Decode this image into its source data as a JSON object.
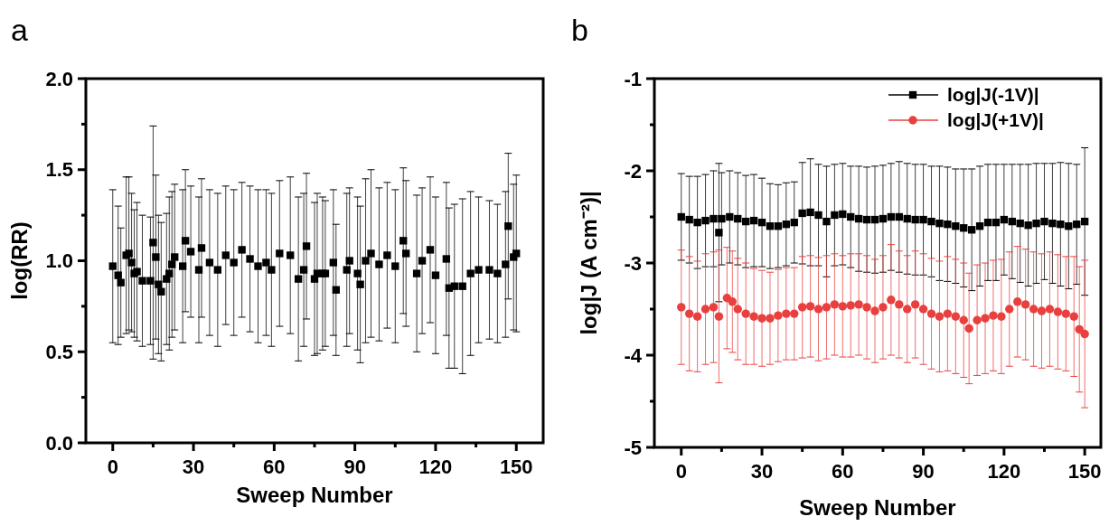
{
  "chart_data": [
    {
      "type": "scatter",
      "title": "a",
      "xlabel": "Sweep Number",
      "ylabel": "log(RR)",
      "xlim": [
        -10,
        160
      ],
      "ylim": [
        0,
        2
      ],
      "xticks": [
        0,
        {
          "value": 15,
          "label": null
        },
        30,
        {
          "value": 45,
          "label": null
        },
        60,
        {
          "value": 75,
          "label": null
        },
        90,
        {
          "value": 105,
          "label": null
        },
        120,
        {
          "value": 135,
          "label": null
        },
        150
      ],
      "yticks": [
        {
          "value": 0,
          "label": "0.0"
        },
        {
          "value": 0.25,
          "label": null
        },
        0.5,
        {
          "value": 0.75,
          "label": null
        },
        {
          "value": 1,
          "label": "1.0"
        },
        {
          "value": 1.25,
          "label": null
        },
        1.5,
        {
          "value": 1.75,
          "label": null
        },
        {
          "value": 2,
          "label": "2.0"
        }
      ],
      "grid": false,
      "legend": false,
      "series": [
        {
          "color": "#000000",
          "marker": "square",
          "x": [
            0,
            2,
            3,
            5,
            6,
            7,
            8,
            9,
            11,
            14,
            15,
            16,
            17,
            18,
            20,
            21,
            22,
            23,
            26,
            27,
            29,
            32,
            33,
            36,
            39,
            42,
            45,
            48,
            51,
            54,
            57,
            59,
            62,
            66,
            69,
            71,
            72,
            75,
            76,
            78,
            79,
            82,
            83,
            87,
            88,
            91,
            92,
            94,
            96,
            99,
            102,
            105,
            108,
            109,
            113,
            115,
            118,
            120,
            124,
            125,
            127,
            130,
            133,
            136,
            140,
            143,
            146,
            147,
            149,
            150
          ],
          "values": [
            0.97,
            0.92,
            0.88,
            1.03,
            1.04,
            0.99,
            0.93,
            0.94,
            0.89,
            0.89,
            1.1,
            1.02,
            0.87,
            0.83,
            0.9,
            0.93,
            0.98,
            1.02,
            0.97,
            1.11,
            1.05,
            0.95,
            1.07,
            0.99,
            0.95,
            1.03,
            0.99,
            1.06,
            1.01,
            0.97,
            0.99,
            0.95,
            1.04,
            1.03,
            0.9,
            0.95,
            1.08,
            0.9,
            0.93,
            0.93,
            0.93,
            0.99,
            0.84,
            0.95,
            1.0,
            0.93,
            0.87,
            1.0,
            1.04,
            0.98,
            1.03,
            0.97,
            1.11,
            1.04,
            0.93,
            1.0,
            1.06,
            0.92,
            1.01,
            0.85,
            0.86,
            0.86,
            0.93,
            0.95,
            0.95,
            0.93,
            0.98,
            1.19,
            1.02,
            1.04
          ],
          "errors": [
            0.42,
            0.38,
            0.3,
            0.43,
            0.42,
            0.38,
            0.35,
            0.38,
            0.36,
            0.35,
            0.64,
            0.45,
            0.38,
            0.38,
            0.36,
            0.42,
            0.4,
            0.4,
            0.42,
            0.39,
            0.36,
            0.4,
            0.38,
            0.4,
            0.42,
            0.38,
            0.4,
            0.37,
            0.4,
            0.42,
            0.4,
            0.42,
            0.4,
            0.43,
            0.45,
            0.42,
            0.4,
            0.42,
            0.44,
            0.42,
            0.4,
            0.4,
            0.36,
            0.42,
            0.4,
            0.42,
            0.43,
            0.45,
            0.46,
            0.42,
            0.4,
            0.42,
            0.4,
            0.4,
            0.43,
            0.4,
            0.4,
            0.43,
            0.42,
            0.44,
            0.45,
            0.48,
            0.45,
            0.4,
            0.38,
            0.38,
            0.4,
            0.4,
            0.4,
            0.43
          ]
        }
      ]
    },
    {
      "type": "scatter",
      "title": "b",
      "xlabel": "Sweep Number",
      "ylabel": "log|J (A cm⁻²)|",
      "xlim": [
        -10,
        156
      ],
      "ylim": [
        -5,
        -1
      ],
      "xticks": [
        0,
        {
          "value": 15,
          "label": null
        },
        30,
        {
          "value": 45,
          "label": null
        },
        60,
        {
          "value": 75,
          "label": null
        },
        90,
        {
          "value": 105,
          "label": null
        },
        120,
        {
          "value": 135,
          "label": null
        },
        150
      ],
      "yticks": [
        -5,
        {
          "value": -4.5,
          "label": null
        },
        -4,
        {
          "value": -3.5,
          "label": null
        },
        -3,
        {
          "value": -2.5,
          "label": null
        },
        -2,
        {
          "value": -1.5,
          "label": null
        },
        -1
      ],
      "grid": false,
      "legend": "top right",
      "series": [
        {
          "name": "log|J(-1V)|",
          "color": "#000000",
          "marker": "square",
          "x": [
            0,
            3,
            6,
            9,
            12,
            14,
            15,
            18,
            21,
            24,
            27,
            30,
            33,
            36,
            39,
            42,
            45,
            48,
            51,
            54,
            57,
            60,
            63,
            66,
            69,
            72,
            75,
            78,
            81,
            84,
            87,
            90,
            93,
            96,
            99,
            102,
            105,
            108,
            111,
            114,
            117,
            120,
            123,
            126,
            129,
            132,
            135,
            138,
            141,
            144,
            147,
            150
          ],
          "values": [
            -2.5,
            -2.53,
            -2.56,
            -2.54,
            -2.52,
            -2.67,
            -2.52,
            -2.5,
            -2.52,
            -2.55,
            -2.54,
            -2.56,
            -2.6,
            -2.6,
            -2.58,
            -2.56,
            -2.46,
            -2.45,
            -2.48,
            -2.55,
            -2.48,
            -2.47,
            -2.5,
            -2.52,
            -2.53,
            -2.53,
            -2.52,
            -2.5,
            -2.5,
            -2.52,
            -2.53,
            -2.53,
            -2.55,
            -2.57,
            -2.58,
            -2.6,
            -2.62,
            -2.64,
            -2.6,
            -2.56,
            -2.56,
            -2.53,
            -2.55,
            -2.57,
            -2.59,
            -2.57,
            -2.55,
            -2.57,
            -2.58,
            -2.6,
            -2.58,
            -2.55
          ],
          "errors": [
            0.47,
            0.47,
            0.5,
            0.5,
            0.52,
            0.75,
            0.5,
            0.5,
            0.5,
            0.5,
            0.5,
            0.48,
            0.46,
            0.45,
            0.45,
            0.44,
            0.55,
            0.58,
            0.55,
            0.6,
            0.55,
            0.55,
            0.55,
            0.57,
            0.57,
            0.58,
            0.58,
            0.58,
            0.6,
            0.6,
            0.6,
            0.6,
            0.6,
            0.62,
            0.62,
            0.62,
            0.64,
            0.66,
            0.65,
            0.63,
            0.63,
            0.6,
            0.62,
            0.64,
            0.66,
            0.65,
            0.63,
            0.65,
            0.67,
            0.68,
            0.65,
            0.8
          ]
        },
        {
          "name": "log|J(+1V)|",
          "color": "#e8403f",
          "marker": "circle",
          "x": [
            0,
            3,
            6,
            9,
            12,
            14,
            17,
            19,
            21,
            24,
            27,
            30,
            33,
            36,
            39,
            42,
            45,
            48,
            51,
            54,
            57,
            60,
            63,
            66,
            69,
            72,
            75,
            78,
            81,
            84,
            87,
            90,
            93,
            96,
            99,
            102,
            105,
            107,
            110,
            113,
            116,
            119,
            122,
            125,
            128,
            131,
            134,
            137,
            140,
            143,
            146,
            148,
            150
          ],
          "values": [
            -3.48,
            -3.55,
            -3.58,
            -3.5,
            -3.48,
            -3.58,
            -3.38,
            -3.42,
            -3.5,
            -3.55,
            -3.58,
            -3.6,
            -3.6,
            -3.57,
            -3.55,
            -3.55,
            -3.48,
            -3.47,
            -3.5,
            -3.48,
            -3.45,
            -3.47,
            -3.46,
            -3.45,
            -3.48,
            -3.52,
            -3.48,
            -3.4,
            -3.45,
            -3.5,
            -3.45,
            -3.5,
            -3.55,
            -3.58,
            -3.55,
            -3.58,
            -3.62,
            -3.71,
            -3.62,
            -3.6,
            -3.57,
            -3.58,
            -3.5,
            -3.42,
            -3.45,
            -3.5,
            -3.52,
            -3.5,
            -3.53,
            -3.55,
            -3.58,
            -3.72,
            -3.77
          ],
          "errors": [
            0.62,
            0.62,
            0.6,
            0.6,
            0.6,
            0.72,
            0.55,
            0.55,
            0.55,
            0.55,
            0.52,
            0.52,
            0.5,
            0.5,
            0.5,
            0.5,
            0.55,
            0.55,
            0.56,
            0.56,
            0.55,
            0.55,
            0.56,
            0.55,
            0.56,
            0.56,
            0.56,
            0.6,
            0.58,
            0.58,
            0.58,
            0.6,
            0.6,
            0.6,
            0.62,
            0.62,
            0.62,
            0.6,
            0.6,
            0.6,
            0.6,
            0.62,
            0.62,
            0.6,
            0.6,
            0.62,
            0.62,
            0.62,
            0.62,
            0.62,
            0.65,
            0.68,
            0.8
          ]
        }
      ]
    }
  ]
}
